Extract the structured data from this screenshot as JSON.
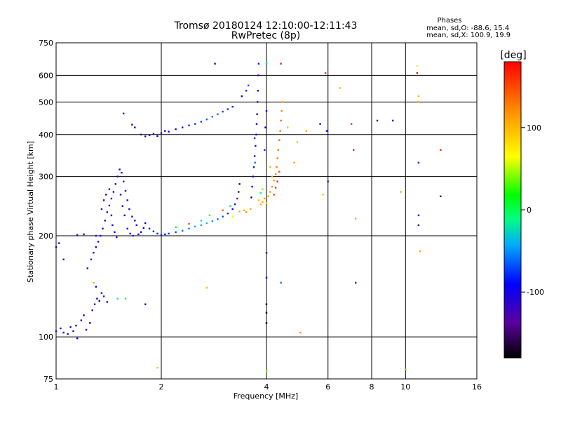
{
  "chart_data": {
    "type": "scatter",
    "title": "Tromsø 20180124 12:10:00-12:11:43",
    "subtitle": "RwPretec (8p)",
    "xlabel": "Frequency [MHz]",
    "ylabel": "Stationary phase Virtual Height [km]",
    "x_scale": "log",
    "y_scale": "log",
    "xlim": [
      1,
      16
    ],
    "ylim": [
      75,
      750
    ],
    "x_ticks": [
      1,
      2,
      4,
      6,
      8,
      10,
      16
    ],
    "y_ticks": [
      75,
      100,
      200,
      300,
      400,
      500,
      600,
      750
    ],
    "grid": true,
    "stats": {
      "heading": "Phases",
      "line1": "mean, sd,O: -88.6, 15.4",
      "line2": "mean, sd,X: 100.9, 19.9"
    },
    "colorbar": {
      "label": "[deg]",
      "range": [
        -180,
        180
      ],
      "ticks": [
        100,
        0,
        -100
      ]
    },
    "points": [
      {
        "f": 1.0,
        "h": 104,
        "p": -110
      },
      {
        "f": 1.03,
        "h": 106,
        "p": -105
      },
      {
        "f": 1.05,
        "h": 103,
        "p": -108
      },
      {
        "f": 1.08,
        "h": 102,
        "p": -100
      },
      {
        "f": 1.1,
        "h": 107,
        "p": -112
      },
      {
        "f": 1.12,
        "h": 104,
        "p": -95
      },
      {
        "f": 1.14,
        "h": 108,
        "p": -103
      },
      {
        "f": 1.15,
        "h": 99,
        "p": -90
      },
      {
        "f": 1.18,
        "h": 112,
        "p": -104
      },
      {
        "f": 1.22,
        "h": 105,
        "p": -109
      },
      {
        "f": 1.25,
        "h": 110,
        "p": -102
      },
      {
        "f": 1.2,
        "h": 116,
        "p": -98
      },
      {
        "f": 1.27,
        "h": 120,
        "p": -105
      },
      {
        "f": 1.29,
        "h": 125,
        "p": -110
      },
      {
        "f": 1.31,
        "h": 130,
        "p": -100
      },
      {
        "f": 1.33,
        "h": 128,
        "p": -96
      },
      {
        "f": 1.35,
        "h": 135,
        "p": -104
      },
      {
        "f": 1.37,
        "h": 132,
        "p": -108
      },
      {
        "f": 1.3,
        "h": 141,
        "p": -99
      },
      {
        "f": 1.4,
        "h": 127,
        "p": -103
      },
      {
        "f": 1.28,
        "h": 145,
        "p": 110
      },
      {
        "f": 1.5,
        "h": 130,
        "p": -20
      },
      {
        "f": 1.23,
        "h": 160,
        "p": -106
      },
      {
        "f": 1.26,
        "h": 170,
        "p": -104
      },
      {
        "f": 1.28,
        "h": 178,
        "p": -99
      },
      {
        "f": 1.3,
        "h": 185,
        "p": -110
      },
      {
        "f": 1.32,
        "h": 192,
        "p": -102
      },
      {
        "f": 1.34,
        "h": 200,
        "p": -108
      },
      {
        "f": 1.36,
        "h": 210,
        "p": -95
      },
      {
        "f": 1.38,
        "h": 222,
        "p": -104
      },
      {
        "f": 1.4,
        "h": 235,
        "p": -109
      },
      {
        "f": 1.42,
        "h": 246,
        "p": -101
      },
      {
        "f": 1.44,
        "h": 258,
        "p": -106
      },
      {
        "f": 1.46,
        "h": 270,
        "p": -98
      },
      {
        "f": 1.48,
        "h": 285,
        "p": -104
      },
      {
        "f": 1.5,
        "h": 300,
        "p": -110
      },
      {
        "f": 1.52,
        "h": 315,
        "p": -103
      },
      {
        "f": 1.54,
        "h": 308,
        "p": -97
      },
      {
        "f": 1.56,
        "h": 290,
        "p": -105
      },
      {
        "f": 1.58,
        "h": 272,
        "p": -100
      },
      {
        "f": 1.6,
        "h": 255,
        "p": -108
      },
      {
        "f": 1.62,
        "h": 240,
        "p": -96
      },
      {
        "f": 1.65,
        "h": 228,
        "p": -104
      },
      {
        "f": 1.68,
        "h": 222,
        "p": -90
      },
      {
        "f": 1.7,
        "h": 215,
        "p": -102
      },
      {
        "f": 1.45,
        "h": 215,
        "p": -107
      },
      {
        "f": 1.47,
        "h": 205,
        "p": -99
      },
      {
        "f": 1.49,
        "h": 198,
        "p": -104
      },
      {
        "f": 1.35,
        "h": 240,
        "p": -101
      },
      {
        "f": 1.37,
        "h": 255,
        "p": -106
      },
      {
        "f": 1.39,
        "h": 265,
        "p": -98
      },
      {
        "f": 1.42,
        "h": 275,
        "p": -103
      },
      {
        "f": 1.44,
        "h": 230,
        "p": -109
      },
      {
        "f": 1.53,
        "h": 265,
        "p": -102
      },
      {
        "f": 1.55,
        "h": 245,
        "p": -108
      },
      {
        "f": 1.57,
        "h": 230,
        "p": -96
      },
      {
        "f": 1.6,
        "h": 210,
        "p": -104
      },
      {
        "f": 1.63,
        "h": 203,
        "p": -99
      },
      {
        "f": 1.66,
        "h": 200,
        "p": -103
      },
      {
        "f": 1.72,
        "h": 202,
        "p": -100
      },
      {
        "f": 1.75,
        "h": 205,
        "p": -95
      },
      {
        "f": 1.78,
        "h": 211,
        "p": -92
      },
      {
        "f": 1.8,
        "h": 218,
        "p": -98
      },
      {
        "f": 1.85,
        "h": 210,
        "p": -90
      },
      {
        "f": 1.9,
        "h": 206,
        "p": -88
      },
      {
        "f": 1.95,
        "h": 203,
        "p": -85
      },
      {
        "f": 2.0,
        "h": 201,
        "p": -82
      },
      {
        "f": 2.05,
        "h": 202,
        "p": -80
      },
      {
        "f": 2.1,
        "h": 203,
        "p": -78
      },
      {
        "f": 2.2,
        "h": 205,
        "p": -70
      },
      {
        "f": 2.3,
        "h": 207,
        "p": -62
      },
      {
        "f": 2.4,
        "h": 210,
        "p": -55
      },
      {
        "f": 2.5,
        "h": 213,
        "p": -48
      },
      {
        "f": 2.6,
        "h": 215,
        "p": -40
      },
      {
        "f": 2.7,
        "h": 218,
        "p": -35
      },
      {
        "f": 2.8,
        "h": 221,
        "p": -45
      },
      {
        "f": 2.9,
        "h": 224,
        "p": -60
      },
      {
        "f": 3.0,
        "h": 228,
        "p": -70
      },
      {
        "f": 3.1,
        "h": 233,
        "p": -80
      },
      {
        "f": 3.2,
        "h": 240,
        "p": -95
      },
      {
        "f": 3.25,
        "h": 248,
        "p": -120
      },
      {
        "f": 3.3,
        "h": 258,
        "p": -140
      },
      {
        "f": 3.33,
        "h": 270,
        "p": -150
      },
      {
        "f": 3.35,
        "h": 285,
        "p": -155
      },
      {
        "f": 2.2,
        "h": 212,
        "p": 10
      },
      {
        "f": 2.4,
        "h": 217,
        "p": 150
      },
      {
        "f": 2.6,
        "h": 222,
        "p": -20
      },
      {
        "f": 2.75,
        "h": 230,
        "p": 20
      },
      {
        "f": 3.0,
        "h": 238,
        "p": 140
      },
      {
        "f": 3.15,
        "h": 245,
        "p": -10
      },
      {
        "f": 3.2,
        "h": 228,
        "p": 60
      },
      {
        "f": 3.35,
        "h": 236,
        "p": 105
      },
      {
        "f": 3.45,
        "h": 238,
        "p": 110
      },
      {
        "f": 3.5,
        "h": 235,
        "p": 115
      },
      {
        "f": 3.6,
        "h": 240,
        "p": 108
      },
      {
        "f": 1.3,
        "h": 200,
        "p": -100
      },
      {
        "f": 1.2,
        "h": 202,
        "p": -98
      },
      {
        "f": 1.15,
        "h": 201,
        "p": -104
      },
      {
        "f": 1.02,
        "h": 190,
        "p": -106
      },
      {
        "f": 1.05,
        "h": 170,
        "p": -102
      },
      {
        "f": 1.75,
        "h": 400,
        "p": -100
      },
      {
        "f": 1.8,
        "h": 395,
        "p": -104
      },
      {
        "f": 1.85,
        "h": 398,
        "p": -96
      },
      {
        "f": 1.9,
        "h": 402,
        "p": -108
      },
      {
        "f": 1.95,
        "h": 396,
        "p": -99
      },
      {
        "f": 2.0,
        "h": 404,
        "p": -103
      },
      {
        "f": 2.05,
        "h": 410,
        "p": -95
      },
      {
        "f": 2.1,
        "h": 408,
        "p": -90
      },
      {
        "f": 2.2,
        "h": 415,
        "p": -92
      },
      {
        "f": 2.3,
        "h": 420,
        "p": -85
      },
      {
        "f": 2.4,
        "h": 426,
        "p": -80
      },
      {
        "f": 2.5,
        "h": 430,
        "p": -75
      },
      {
        "f": 2.6,
        "h": 437,
        "p": -70
      },
      {
        "f": 2.7,
        "h": 444,
        "p": -65
      },
      {
        "f": 2.8,
        "h": 452,
        "p": -60
      },
      {
        "f": 2.9,
        "h": 460,
        "p": -62
      },
      {
        "f": 3.0,
        "h": 468,
        "p": -70
      },
      {
        "f": 3.1,
        "h": 476,
        "p": -78
      },
      {
        "f": 3.2,
        "h": 484,
        "p": -85
      },
      {
        "f": 1.65,
        "h": 428,
        "p": -150
      },
      {
        "f": 1.68,
        "h": 420,
        "p": -150
      },
      {
        "f": 1.56,
        "h": 462,
        "p": -105
      },
      {
        "f": 3.4,
        "h": 520,
        "p": -90
      },
      {
        "f": 3.5,
        "h": 540,
        "p": -80
      },
      {
        "f": 3.55,
        "h": 560,
        "p": -70
      },
      {
        "f": 2.85,
        "h": 650,
        "p": -110
      },
      {
        "f": 3.62,
        "h": 260,
        "p": -100
      },
      {
        "f": 3.64,
        "h": 280,
        "p": -103
      },
      {
        "f": 3.66,
        "h": 300,
        "p": -98
      },
      {
        "f": 3.68,
        "h": 320,
        "p": -105
      },
      {
        "f": 3.7,
        "h": 345,
        "p": -100
      },
      {
        "f": 3.72,
        "h": 370,
        "p": -96
      },
      {
        "f": 3.74,
        "h": 400,
        "p": -102
      },
      {
        "f": 3.75,
        "h": 430,
        "p": -108
      },
      {
        "f": 3.76,
        "h": 460,
        "p": -99
      },
      {
        "f": 3.77,
        "h": 500,
        "p": -104
      },
      {
        "f": 3.78,
        "h": 540,
        "p": -97
      },
      {
        "f": 3.79,
        "h": 600,
        "p": -110
      },
      {
        "f": 3.8,
        "h": 650,
        "p": -105
      },
      {
        "f": 3.7,
        "h": 390,
        "p": -140
      },
      {
        "f": 3.71,
        "h": 330,
        "p": -60
      },
      {
        "f": 3.95,
        "h": 360,
        "p": -80
      },
      {
        "f": 3.97,
        "h": 420,
        "p": -90
      },
      {
        "f": 4.0,
        "h": 470,
        "p": -100
      },
      {
        "f": 4.0,
        "h": 650,
        "p": -20
      },
      {
        "f": 3.8,
        "h": 255,
        "p": 100
      },
      {
        "f": 3.85,
        "h": 248,
        "p": 110
      },
      {
        "f": 3.9,
        "h": 252,
        "p": 105
      },
      {
        "f": 3.95,
        "h": 258,
        "p": 112
      },
      {
        "f": 4.0,
        "h": 250,
        "p": 95
      },
      {
        "f": 4.05,
        "h": 262,
        "p": 108
      },
      {
        "f": 4.1,
        "h": 270,
        "p": 115
      },
      {
        "f": 4.15,
        "h": 280,
        "p": 120
      },
      {
        "f": 4.2,
        "h": 292,
        "p": 118
      },
      {
        "f": 4.25,
        "h": 305,
        "p": 125
      },
      {
        "f": 4.28,
        "h": 320,
        "p": 130
      },
      {
        "f": 4.3,
        "h": 340,
        "p": 135
      },
      {
        "f": 4.32,
        "h": 360,
        "p": 128
      },
      {
        "f": 4.35,
        "h": 385,
        "p": 140
      },
      {
        "f": 4.38,
        "h": 410,
        "p": 132
      },
      {
        "f": 4.4,
        "h": 440,
        "p": 138
      },
      {
        "f": 4.42,
        "h": 470,
        "p": 125
      },
      {
        "f": 4.45,
        "h": 500,
        "p": 110
      },
      {
        "f": 4.2,
        "h": 265,
        "p": 150
      },
      {
        "f": 4.25,
        "h": 278,
        "p": 165
      },
      {
        "f": 4.3,
        "h": 290,
        "p": 170
      },
      {
        "f": 4.35,
        "h": 310,
        "p": 150
      },
      {
        "f": 4.15,
        "h": 300,
        "p": 105
      },
      {
        "f": 4.1,
        "h": 320,
        "p": 100
      },
      {
        "f": 3.9,
        "h": 275,
        "p": 40
      },
      {
        "f": 3.85,
        "h": 268,
        "p": 0
      },
      {
        "f": 4.4,
        "h": 650,
        "p": 170
      },
      {
        "f": 4.0,
        "h": 178,
        "p": -110
      },
      {
        "f": 4.0,
        "h": 150,
        "p": -100
      },
      {
        "f": 4.0,
        "h": 125,
        "p": -180
      },
      {
        "f": 4.0,
        "h": 118,
        "p": -180
      },
      {
        "f": 4.0,
        "h": 110,
        "p": -180
      },
      {
        "f": 4.0,
        "h": 79,
        "p": 40
      },
      {
        "f": 4.4,
        "h": 145,
        "p": -60
      },
      {
        "f": 4.6,
        "h": 420,
        "p": 100
      },
      {
        "f": 4.8,
        "h": 330,
        "p": 110
      },
      {
        "f": 4.9,
        "h": 380,
        "p": 95
      },
      {
        "f": 5.0,
        "h": 103,
        "p": 120
      },
      {
        "f": 5.2,
        "h": 410,
        "p": 105
      },
      {
        "f": 5.7,
        "h": 430,
        "p": -110
      },
      {
        "f": 5.8,
        "h": 265,
        "p": 100
      },
      {
        "f": 5.9,
        "h": 610,
        "p": 160
      },
      {
        "f": 5.95,
        "h": 410,
        "p": -100
      },
      {
        "f": 6.0,
        "h": 290,
        "p": -120
      },
      {
        "f": 6.5,
        "h": 550,
        "p": 100
      },
      {
        "f": 7.0,
        "h": 430,
        "p": 160
      },
      {
        "f": 7.1,
        "h": 360,
        "p": 170
      },
      {
        "f": 7.2,
        "h": 225,
        "p": 110
      },
      {
        "f": 7.2,
        "h": 145,
        "p": -110
      },
      {
        "f": 8.3,
        "h": 440,
        "p": -100
      },
      {
        "f": 9.2,
        "h": 440,
        "p": -120
      },
      {
        "f": 9.7,
        "h": 270,
        "p": 110
      },
      {
        "f": 10.0,
        "h": 80,
        "p": 30
      },
      {
        "f": 10.8,
        "h": 640,
        "p": 60
      },
      {
        "f": 10.8,
        "h": 610,
        "p": 180
      },
      {
        "f": 10.9,
        "h": 520,
        "p": 100
      },
      {
        "f": 10.9,
        "h": 500,
        "p": 110
      },
      {
        "f": 10.9,
        "h": 330,
        "p": -140
      },
      {
        "f": 10.9,
        "h": 230,
        "p": -110
      },
      {
        "f": 10.9,
        "h": 215,
        "p": -150
      },
      {
        "f": 11.0,
        "h": 180,
        "p": 110
      },
      {
        "f": 12.6,
        "h": 360,
        "p": 160
      },
      {
        "f": 12.6,
        "h": 262,
        "p": -150
      },
      {
        "f": 2.7,
        "h": 140,
        "p": 100
      },
      {
        "f": 1.0,
        "h": 185,
        "p": -100
      },
      {
        "f": 1.95,
        "h": 81,
        "p": 40
      },
      {
        "f": 1.8,
        "h": 125,
        "p": -100
      },
      {
        "f": 1.58,
        "h": 130,
        "p": 20
      }
    ]
  }
}
